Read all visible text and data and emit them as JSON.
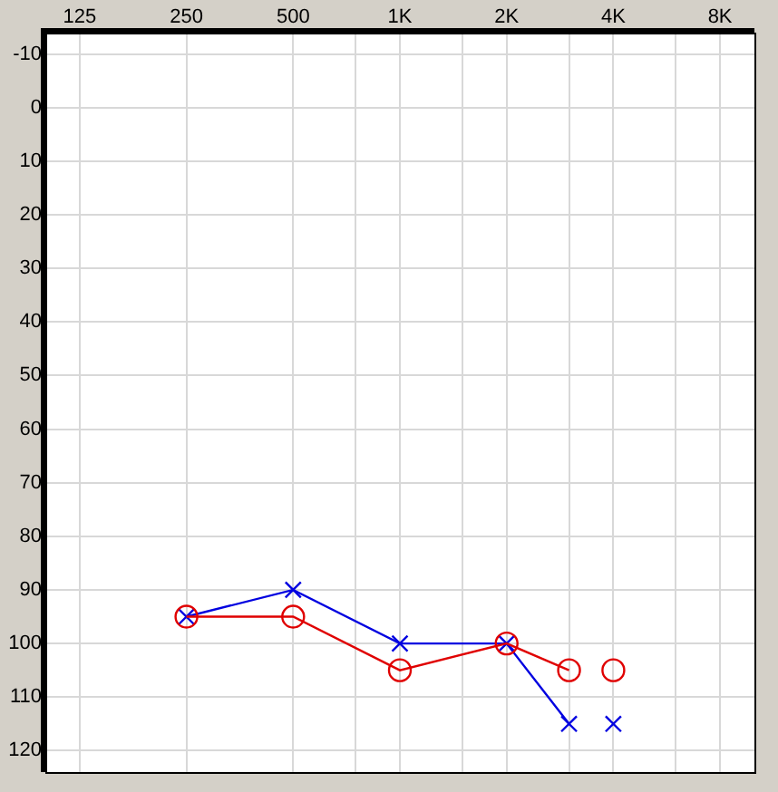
{
  "chart_data": {
    "type": "line",
    "log": "x",
    "xlim": [
      100,
      10000
    ],
    "ylim": [
      124,
      -14
    ],
    "xticks": [
      125,
      250,
      500,
      {
        "value": 750,
        "label": null
      },
      {
        "value": 1000,
        "label": "1K"
      },
      {
        "value": 1500,
        "label": null
      },
      {
        "value": 2000,
        "label": "2K"
      },
      {
        "value": 3000,
        "label": null
      },
      {
        "value": 4000,
        "label": "4K"
      },
      {
        "value": 6000,
        "label": null
      },
      {
        "value": 8000,
        "label": "8K"
      }
    ],
    "yticks": [
      -10,
      0,
      10,
      20,
      30,
      40,
      50,
      60,
      70,
      80,
      90,
      100,
      110,
      120
    ],
    "grid": true,
    "legend": false,
    "series": [
      {
        "type": "line",
        "marker": "circle",
        "color": "#e00000",
        "x": [
          250,
          500,
          1000,
          2000,
          3000
        ],
        "values": [
          95,
          95,
          105,
          100,
          105
        ]
      },
      {
        "type": "scatter",
        "marker": "circle",
        "color": "#e00000",
        "x": [
          4000
        ],
        "values": [
          105
        ]
      },
      {
        "type": "line",
        "marker": "cross",
        "color": "#0000e0",
        "x": [
          250,
          500,
          1000,
          2000,
          3000
        ],
        "values": [
          95,
          90,
          100,
          100,
          115
        ]
      },
      {
        "type": "scatter",
        "marker": "cross",
        "color": "#0000e0",
        "x": [
          4000
        ],
        "values": [
          115
        ]
      }
    ]
  }
}
